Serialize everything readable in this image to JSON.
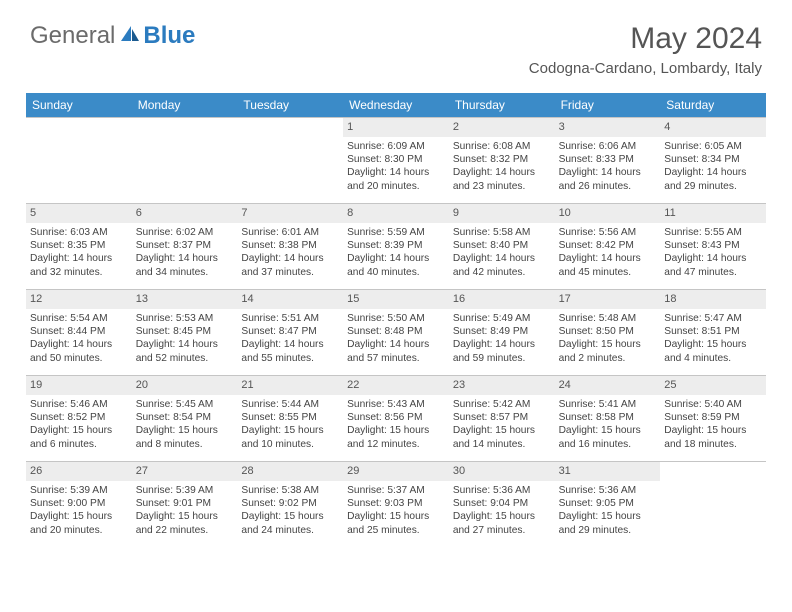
{
  "branding": {
    "word1": "General",
    "word2": "Blue",
    "color_general": "#6b6b6b",
    "color_blue": "#2b7bbf"
  },
  "title": {
    "month_year": "May 2024",
    "location": "Codogna-Cardano, Lombardy, Italy"
  },
  "colors": {
    "header_bg": "#3b8bc8",
    "header_text": "#ffffff",
    "daynum_bg": "#ededed",
    "border": "#c5c5c5",
    "body_text": "#444444"
  },
  "weekdays": [
    "Sunday",
    "Monday",
    "Tuesday",
    "Wednesday",
    "Thursday",
    "Friday",
    "Saturday"
  ],
  "leading_blanks": 3,
  "days": [
    {
      "n": "1",
      "sunrise": "6:09 AM",
      "sunset": "8:30 PM",
      "dl1": "14 hours",
      "dl2": "and 20 minutes."
    },
    {
      "n": "2",
      "sunrise": "6:08 AM",
      "sunset": "8:32 PM",
      "dl1": "14 hours",
      "dl2": "and 23 minutes."
    },
    {
      "n": "3",
      "sunrise": "6:06 AM",
      "sunset": "8:33 PM",
      "dl1": "14 hours",
      "dl2": "and 26 minutes."
    },
    {
      "n": "4",
      "sunrise": "6:05 AM",
      "sunset": "8:34 PM",
      "dl1": "14 hours",
      "dl2": "and 29 minutes."
    },
    {
      "n": "5",
      "sunrise": "6:03 AM",
      "sunset": "8:35 PM",
      "dl1": "14 hours",
      "dl2": "and 32 minutes."
    },
    {
      "n": "6",
      "sunrise": "6:02 AM",
      "sunset": "8:37 PM",
      "dl1": "14 hours",
      "dl2": "and 34 minutes."
    },
    {
      "n": "7",
      "sunrise": "6:01 AM",
      "sunset": "8:38 PM",
      "dl1": "14 hours",
      "dl2": "and 37 minutes."
    },
    {
      "n": "8",
      "sunrise": "5:59 AM",
      "sunset": "8:39 PM",
      "dl1": "14 hours",
      "dl2": "and 40 minutes."
    },
    {
      "n": "9",
      "sunrise": "5:58 AM",
      "sunset": "8:40 PM",
      "dl1": "14 hours",
      "dl2": "and 42 minutes."
    },
    {
      "n": "10",
      "sunrise": "5:56 AM",
      "sunset": "8:42 PM",
      "dl1": "14 hours",
      "dl2": "and 45 minutes."
    },
    {
      "n": "11",
      "sunrise": "5:55 AM",
      "sunset": "8:43 PM",
      "dl1": "14 hours",
      "dl2": "and 47 minutes."
    },
    {
      "n": "12",
      "sunrise": "5:54 AM",
      "sunset": "8:44 PM",
      "dl1": "14 hours",
      "dl2": "and 50 minutes."
    },
    {
      "n": "13",
      "sunrise": "5:53 AM",
      "sunset": "8:45 PM",
      "dl1": "14 hours",
      "dl2": "and 52 minutes."
    },
    {
      "n": "14",
      "sunrise": "5:51 AM",
      "sunset": "8:47 PM",
      "dl1": "14 hours",
      "dl2": "and 55 minutes."
    },
    {
      "n": "15",
      "sunrise": "5:50 AM",
      "sunset": "8:48 PM",
      "dl1": "14 hours",
      "dl2": "and 57 minutes."
    },
    {
      "n": "16",
      "sunrise": "5:49 AM",
      "sunset": "8:49 PM",
      "dl1": "14 hours",
      "dl2": "and 59 minutes."
    },
    {
      "n": "17",
      "sunrise": "5:48 AM",
      "sunset": "8:50 PM",
      "dl1": "15 hours",
      "dl2": "and 2 minutes."
    },
    {
      "n": "18",
      "sunrise": "5:47 AM",
      "sunset": "8:51 PM",
      "dl1": "15 hours",
      "dl2": "and 4 minutes."
    },
    {
      "n": "19",
      "sunrise": "5:46 AM",
      "sunset": "8:52 PM",
      "dl1": "15 hours",
      "dl2": "and 6 minutes."
    },
    {
      "n": "20",
      "sunrise": "5:45 AM",
      "sunset": "8:54 PM",
      "dl1": "15 hours",
      "dl2": "and 8 minutes."
    },
    {
      "n": "21",
      "sunrise": "5:44 AM",
      "sunset": "8:55 PM",
      "dl1": "15 hours",
      "dl2": "and 10 minutes."
    },
    {
      "n": "22",
      "sunrise": "5:43 AM",
      "sunset": "8:56 PM",
      "dl1": "15 hours",
      "dl2": "and 12 minutes."
    },
    {
      "n": "23",
      "sunrise": "5:42 AM",
      "sunset": "8:57 PM",
      "dl1": "15 hours",
      "dl2": "and 14 minutes."
    },
    {
      "n": "24",
      "sunrise": "5:41 AM",
      "sunset": "8:58 PM",
      "dl1": "15 hours",
      "dl2": "and 16 minutes."
    },
    {
      "n": "25",
      "sunrise": "5:40 AM",
      "sunset": "8:59 PM",
      "dl1": "15 hours",
      "dl2": "and 18 minutes."
    },
    {
      "n": "26",
      "sunrise": "5:39 AM",
      "sunset": "9:00 PM",
      "dl1": "15 hours",
      "dl2": "and 20 minutes."
    },
    {
      "n": "27",
      "sunrise": "5:39 AM",
      "sunset": "9:01 PM",
      "dl1": "15 hours",
      "dl2": "and 22 minutes."
    },
    {
      "n": "28",
      "sunrise": "5:38 AM",
      "sunset": "9:02 PM",
      "dl1": "15 hours",
      "dl2": "and 24 minutes."
    },
    {
      "n": "29",
      "sunrise": "5:37 AM",
      "sunset": "9:03 PM",
      "dl1": "15 hours",
      "dl2": "and 25 minutes."
    },
    {
      "n": "30",
      "sunrise": "5:36 AM",
      "sunset": "9:04 PM",
      "dl1": "15 hours",
      "dl2": "and 27 minutes."
    },
    {
      "n": "31",
      "sunrise": "5:36 AM",
      "sunset": "9:05 PM",
      "dl1": "15 hours",
      "dl2": "and 29 minutes."
    }
  ],
  "labels": {
    "sunrise_prefix": "Sunrise: ",
    "sunset_prefix": "Sunset: ",
    "daylight_prefix": "Daylight: "
  }
}
